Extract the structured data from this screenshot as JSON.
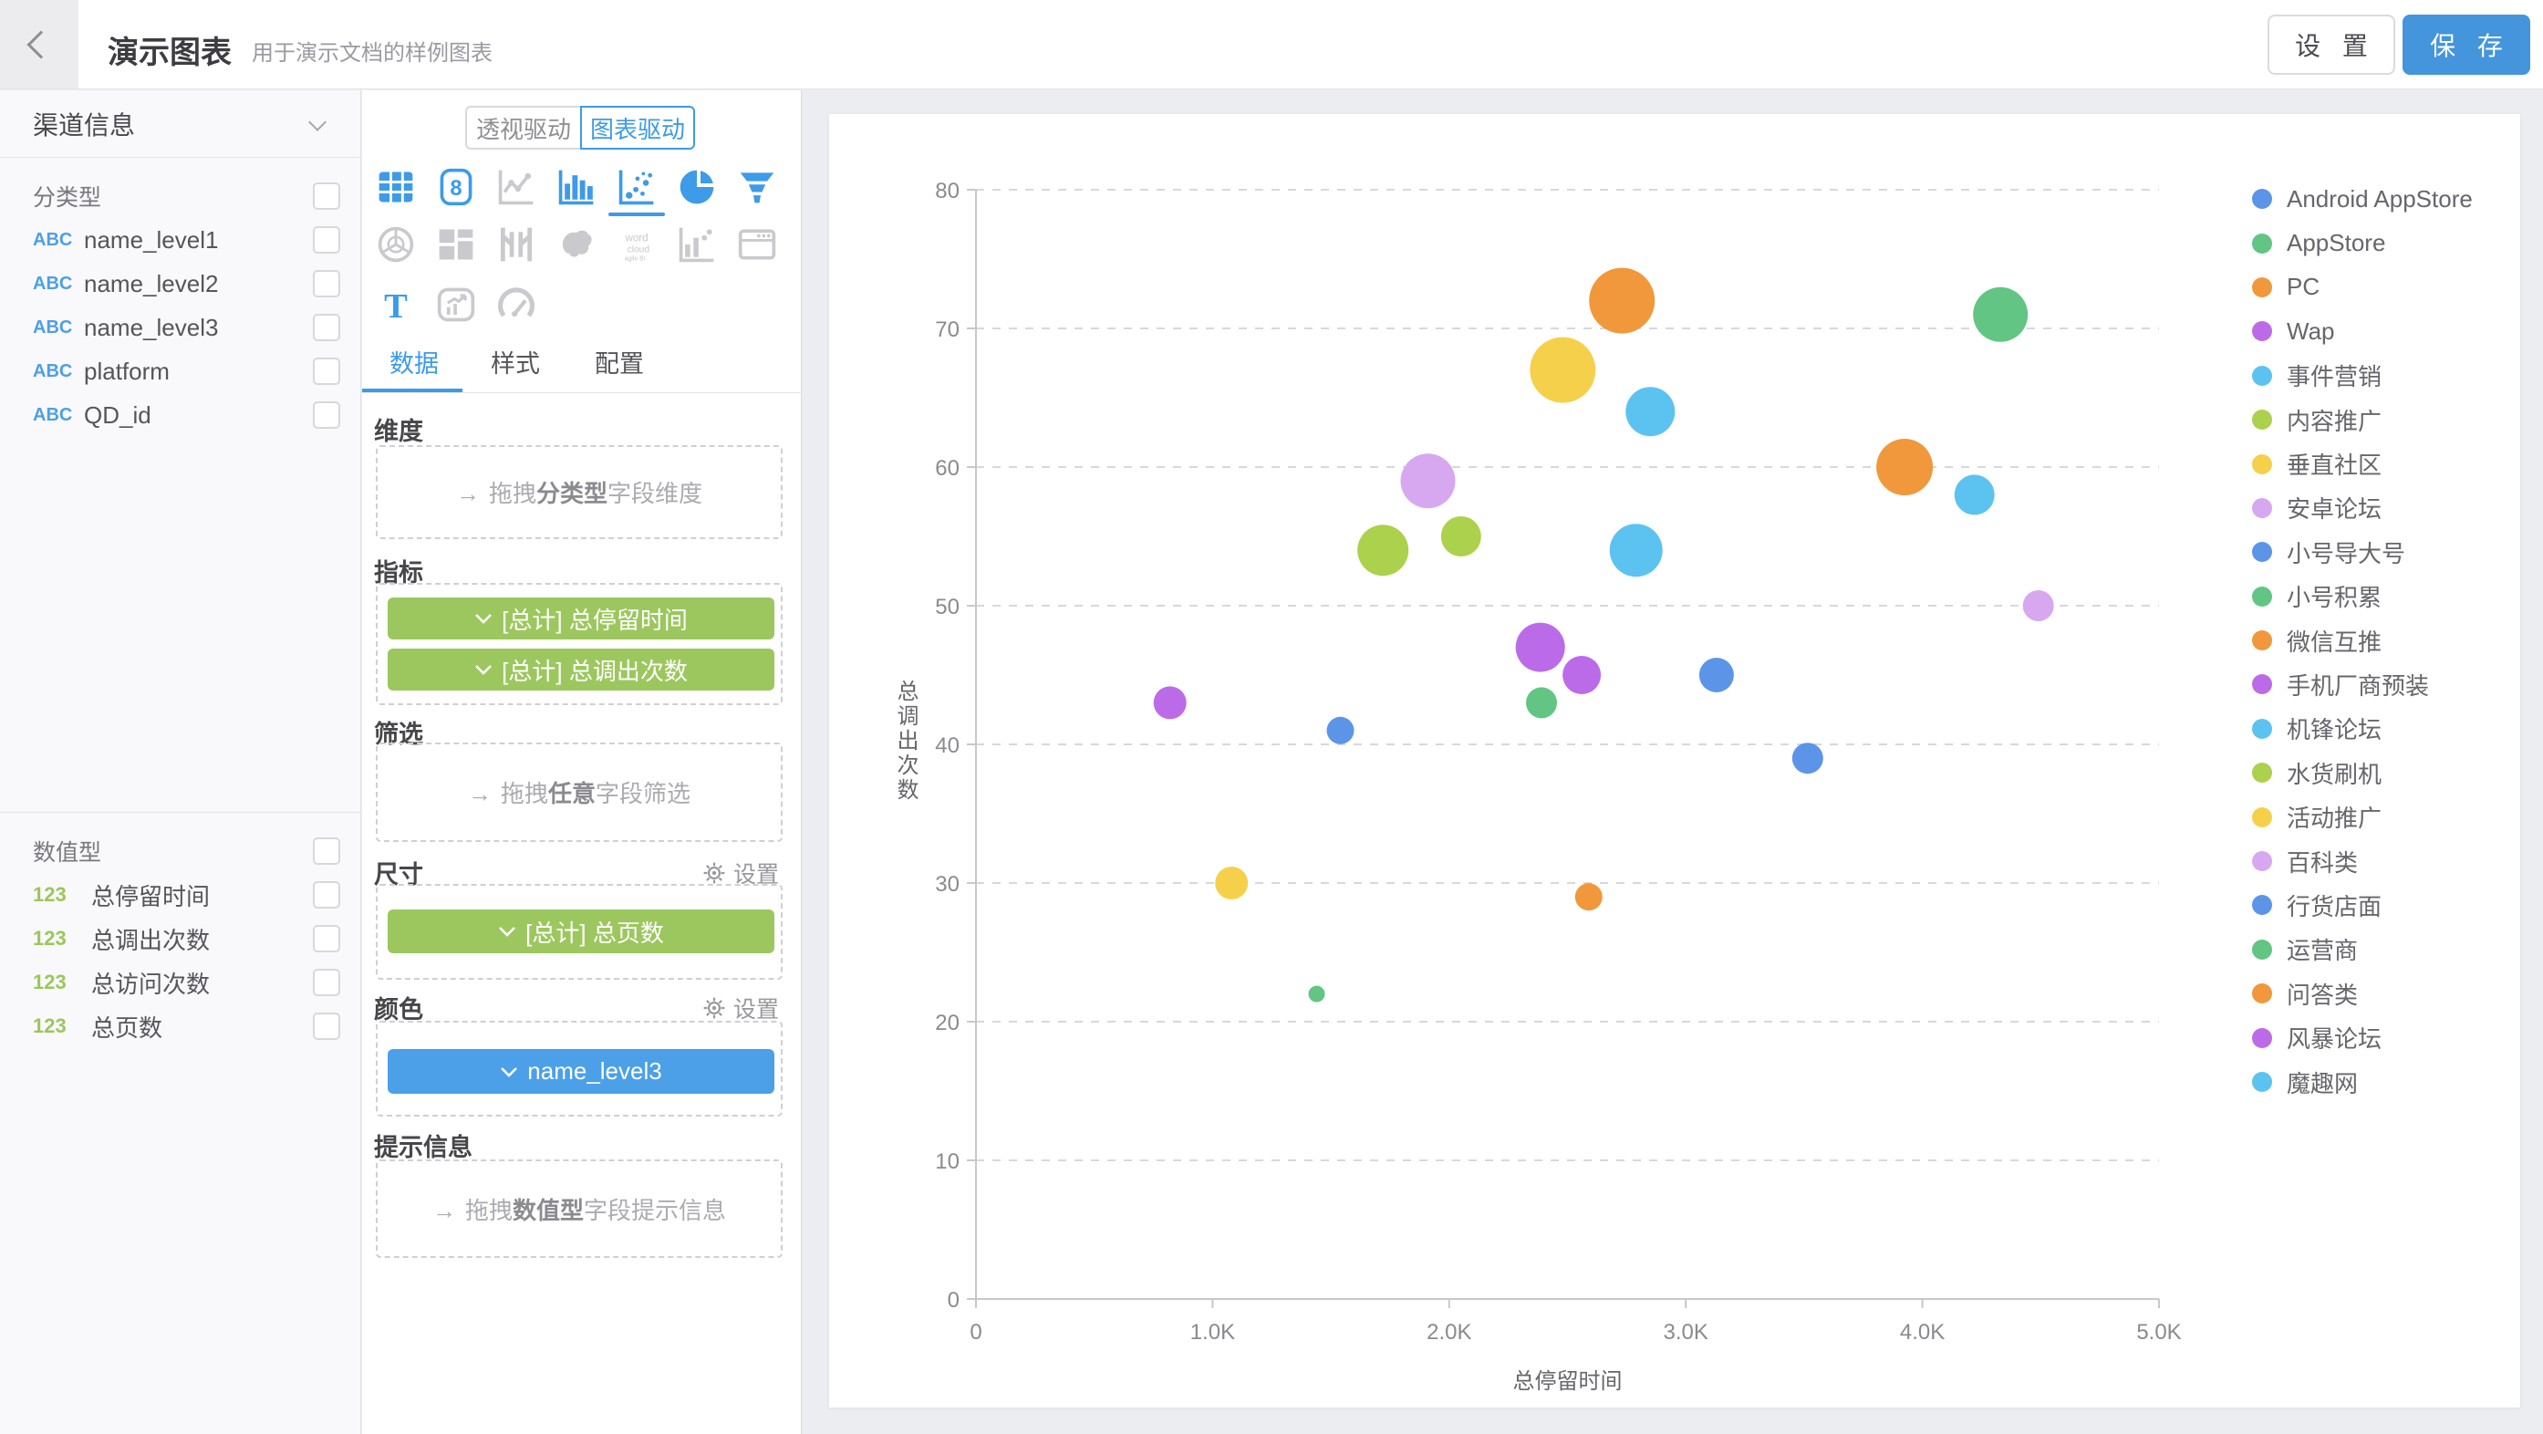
{
  "header": {
    "title": "演示图表",
    "subtitle": "用于演示文档的样例图表",
    "settings_label": "设 置",
    "save_label": "保 存"
  },
  "colors": {
    "accent_blue": "#3D9BE9",
    "save_blue": "#4495DC",
    "pill_green": "#9CC75E",
    "pill_blue": "#4BA0E8",
    "icon_disabled": "#C9C9CE"
  },
  "sidebar": {
    "dataset_name": "渠道信息",
    "categorical_title": "分类型",
    "categorical_badge": "ABC",
    "categorical_fields": [
      "name_level1",
      "name_level2",
      "name_level3",
      "platform",
      "QD_id"
    ],
    "numeric_title": "数值型",
    "numeric_badge": "123",
    "numeric_fields": [
      "总停留时间",
      "总调出次数",
      "总访问次数",
      "总页数"
    ]
  },
  "panel": {
    "mode_pivot": "透视驱动",
    "mode_chart": "图表驱动",
    "tabs": [
      "数据",
      "样式",
      "配置"
    ],
    "active_tab": "数据",
    "drag_arrow": "→",
    "chart_type_rows": [
      [
        {
          "name": "table-chart",
          "state": "enabled"
        },
        {
          "name": "kpi-card",
          "state": "enabled"
        },
        {
          "name": "line-chart",
          "state": "disabled"
        },
        {
          "name": "bar-chart",
          "state": "enabled"
        },
        {
          "name": "scatter-chart",
          "state": "selected"
        },
        {
          "name": "pie-chart",
          "state": "enabled"
        },
        {
          "name": "funnel-chart",
          "state": "enabled"
        }
      ],
      [
        {
          "name": "radar-chart",
          "state": "disabled"
        },
        {
          "name": "treemap-chart",
          "state": "disabled"
        },
        {
          "name": "gantt-chart",
          "state": "disabled"
        },
        {
          "name": "map-chart",
          "state": "disabled"
        },
        {
          "name": "wordcloud-chart",
          "state": "disabled"
        },
        {
          "name": "combo-chart",
          "state": "disabled"
        },
        {
          "name": "iframe-card",
          "state": "disabled"
        }
      ],
      [
        {
          "name": "text-widget",
          "state": "enabled"
        },
        {
          "name": "trend-card",
          "state": "disabled"
        },
        {
          "name": "gauge-chart",
          "state": "disabled"
        }
      ]
    ],
    "sections": {
      "dimension": {
        "label": "维度",
        "hint_pre": "拖拽",
        "hint_strong": "分类型",
        "hint_post": "字段维度"
      },
      "measure": {
        "label": "指标",
        "pills": [
          "[总计] 总停留时间",
          "[总计] 总调出次数"
        ]
      },
      "filter": {
        "label": "筛选",
        "hint_pre": "拖拽",
        "hint_strong": "任意",
        "hint_post": "字段筛选"
      },
      "size": {
        "label": "尺寸",
        "action": "设置",
        "pill": "[总计] 总页数"
      },
      "color": {
        "label": "颜色",
        "action": "设置",
        "pill": "name_level3"
      },
      "tooltip": {
        "label": "提示信息",
        "hint_pre": "拖拽",
        "hint_strong": "数值型",
        "hint_post": "字段提示信息"
      }
    }
  },
  "chart_data": {
    "type": "scatter",
    "xlabel": "总停留时间",
    "ylabel": "总调出次数",
    "xlim": [
      0,
      5000
    ],
    "ylim": [
      0,
      80
    ],
    "x_tick_values": [
      0,
      1000,
      2000,
      3000,
      4000,
      5000
    ],
    "x_tick_labels": [
      "0",
      "1.0K",
      "2.0K",
      "3.0K",
      "4.0K",
      "5.0K"
    ],
    "y_tick_step": 10,
    "grid": "dashed-horizontal",
    "legend_position": "right",
    "size_metric": "总页数",
    "color_metric": "name_level3",
    "palette": {
      "blue": "#5C95E8",
      "green": "#62C583",
      "orange": "#F0983B",
      "purple": "#BC6BE8",
      "lightblue": "#5CC3F0",
      "yellowgreen": "#ACD14C",
      "yellow": "#F5D14B",
      "lightpurple": "#D7A8F0"
    },
    "series": [
      {
        "name": "Android AppStore",
        "color": "blue",
        "x": 3130,
        "y": 45,
        "r": 19
      },
      {
        "name": "AppStore",
        "color": "green",
        "x": 4330,
        "y": 71,
        "r": 30
      },
      {
        "name": "PC",
        "color": "orange",
        "x": 2730,
        "y": 72,
        "r": 36
      },
      {
        "name": "Wap",
        "color": "purple",
        "x": 2385,
        "y": 47,
        "r": 27
      },
      {
        "name": "事件营销",
        "color": "lightblue",
        "x": 2850,
        "y": 64,
        "r": 27
      },
      {
        "name": "内容推广",
        "color": "yellowgreen",
        "x": 1720,
        "y": 54,
        "r": 28
      },
      {
        "name": "垂直社区",
        "color": "yellow",
        "x": 2480,
        "y": 67,
        "r": 36
      },
      {
        "name": "安卓论坛",
        "color": "lightpurple",
        "x": 1910,
        "y": 59,
        "r": 30
      },
      {
        "name": "小号导大号",
        "color": "blue",
        "x": 3515,
        "y": 39,
        "r": 17
      },
      {
        "name": "小号积累",
        "color": "green",
        "x": 1440,
        "y": 22,
        "r": 9
      },
      {
        "name": "微信互推",
        "color": "orange",
        "x": 3925,
        "y": 60,
        "r": 31
      },
      {
        "name": "手机厂商预装",
        "color": "purple",
        "x": 2560,
        "y": 45,
        "r": 21
      },
      {
        "name": "机锋论坛",
        "color": "lightblue",
        "x": 4220,
        "y": 58,
        "r": 22
      },
      {
        "name": "水货刷机",
        "color": "yellowgreen",
        "x": 2050,
        "y": 55,
        "r": 22
      },
      {
        "name": "活动推广",
        "color": "yellow",
        "x": 1080,
        "y": 30,
        "r": 18
      },
      {
        "name": "百科类",
        "color": "lightpurple",
        "x": 4490,
        "y": 50,
        "r": 17
      },
      {
        "name": "行货店面",
        "color": "blue",
        "x": 1540,
        "y": 41,
        "r": 15
      },
      {
        "name": "运营商",
        "color": "green",
        "x": 2390,
        "y": 43,
        "r": 17
      },
      {
        "name": "问答类",
        "color": "orange",
        "x": 2590,
        "y": 29,
        "r": 15
      },
      {
        "name": "风暴论坛",
        "color": "purple",
        "x": 820,
        "y": 43,
        "r": 18
      },
      {
        "name": "魔趣网",
        "color": "lightblue",
        "x": 2790,
        "y": 54,
        "r": 29
      }
    ]
  }
}
